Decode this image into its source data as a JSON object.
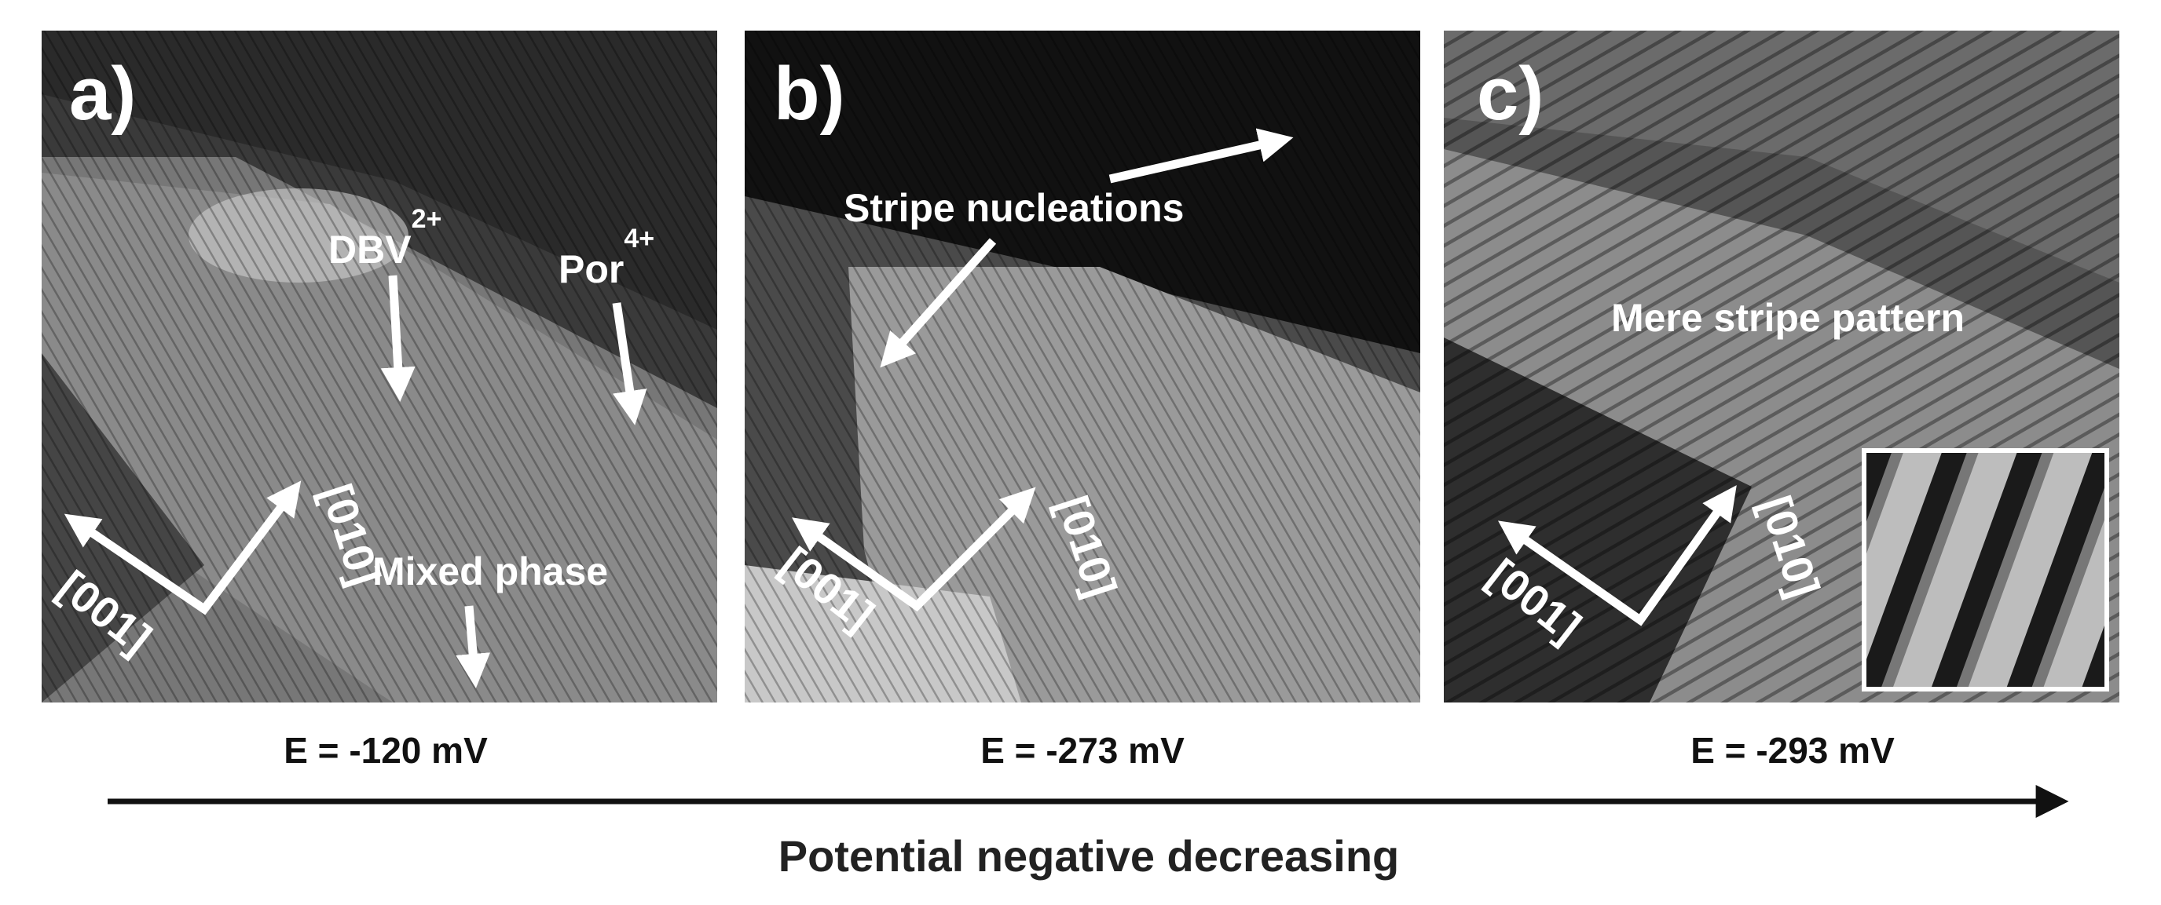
{
  "panels": [
    {
      "label": "a)",
      "annotations": [
        {
          "text": "DBV",
          "superscript": "2+"
        },
        {
          "text": "Por",
          "superscript": "4+"
        },
        {
          "text": "Mixed phase"
        }
      ],
      "axes": [
        "[001]",
        "[010]"
      ],
      "potential": "E = -120 mV"
    },
    {
      "label": "b)",
      "annotations": [
        {
          "text": "Stripe nucleations"
        }
      ],
      "axes": [
        "[001]",
        "[010]"
      ],
      "potential": "E = -273 mV"
    },
    {
      "label": "c)",
      "annotations": [
        {
          "text": "Mere stripe pattern"
        }
      ],
      "axes": [
        "[001]",
        "[010]"
      ],
      "potential": "E = -293 mV"
    }
  ],
  "axis_caption": "Potential negative decreasing"
}
